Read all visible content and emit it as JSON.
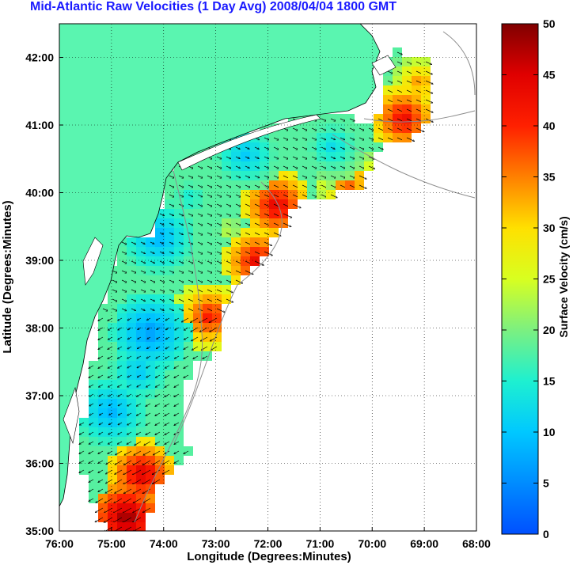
{
  "title": "Mid-Atlantic Raw Velocities (1 Day Avg) 2008/04/04 1800 GMT",
  "colors": {
    "title": "#1a1aff",
    "land": "#5af5b0",
    "grid": "#000000"
  },
  "map": {
    "xlabel": "Longitude (Degrees:Minutes)",
    "ylabel": "Latitude (Degrees:Minutes)",
    "lon_ticks": [
      "76:00",
      "75:00",
      "74:00",
      "73:00",
      "72:00",
      "71:00",
      "70:00",
      "69:00",
      "68:00"
    ],
    "lat_ticks": [
      "35:00",
      "36:00",
      "37:00",
      "38:00",
      "39:00",
      "40:00",
      "41:00",
      "42:00"
    ]
  },
  "colorbar": {
    "label": "Surface Velocity (cm/s)",
    "ticks": [
      "0",
      "5",
      "10",
      "15",
      "20",
      "25",
      "30",
      "35",
      "40",
      "45",
      "50"
    ],
    "range": [
      0,
      50
    ]
  }
}
